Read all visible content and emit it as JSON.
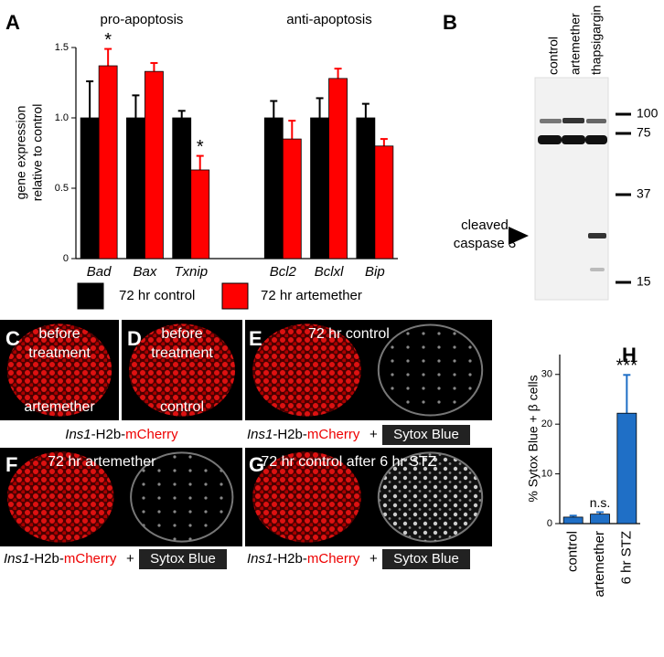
{
  "panels": {
    "labels": [
      "A",
      "B",
      "C",
      "D",
      "E",
      "F",
      "G",
      "H"
    ]
  },
  "chart_data": [
    {
      "type": "bar",
      "groups": [
        "pro-apoptosis",
        "anti-apoptosis"
      ],
      "ylabel": [
        "gene expression",
        "relative to control"
      ],
      "categories": [
        "Bad",
        "Bax",
        "Txnip",
        null,
        "Bcl2",
        "Bclxl",
        "Bip"
      ],
      "series": [
        {
          "name": "72 hr control",
          "color": "#000000",
          "values": [
            1,
            1,
            1,
            null,
            1,
            1,
            1
          ],
          "errors": [
            0.26,
            0.16,
            0.05,
            null,
            0.12,
            0.14,
            0.1
          ],
          "marks": [
            null,
            null,
            null,
            null,
            null,
            null,
            null
          ]
        },
        {
          "name": "72 hr artemether",
          "color": "#ff0000",
          "values": [
            1.37,
            1.33,
            0.63,
            null,
            0.85,
            1.28,
            0.8
          ],
          "errors": [
            0.12,
            0.06,
            0.1,
            null,
            0.13,
            0.07,
            0.05
          ],
          "marks": [
            "*",
            null,
            "*",
            null,
            null,
            null,
            null
          ]
        }
      ],
      "ylim": [
        0,
        1.5
      ],
      "yticks": [
        0,
        0.5,
        {
          "value": 1,
          "label": "1.0"
        },
        1.5
      ]
    },
    {
      "type": "bar",
      "ylabel": [
        "% Sytox Blue + β cells"
      ],
      "categories": [
        "control",
        "artemether",
        "6 hr STZ"
      ],
      "values": [
        1.3,
        1.9,
        22.2
      ],
      "errors": [
        0.3,
        0.4,
        7.7
      ],
      "marks": [
        null,
        "n.s.",
        "***"
      ],
      "color": "#1f6fc6",
      "ylim": [
        0,
        34
      ],
      "yticks": [
        0,
        10,
        20,
        30
      ]
    }
  ],
  "blot": {
    "lanes": [
      "control",
      "artemether",
      "thapsigargin"
    ],
    "markers": [
      100,
      75,
      37,
      15
    ],
    "arrow_label": [
      "cleaved",
      "caspase 3"
    ]
  },
  "images": [
    {
      "top": [
        "before",
        "treatment"
      ],
      "bottom": "artemether"
    },
    {
      "top": [
        "before",
        "treatment"
      ],
      "bottom": "control"
    },
    {
      "top": [
        "72 hr control"
      ]
    },
    {
      "top": [
        "72 hr artemether"
      ]
    },
    {
      "top": [
        "72 hr control after 6 hr STZ"
      ]
    }
  ],
  "caption": {
    "gene": "Ins1",
    "construct": "-H2b-",
    "reporter": "mCherry",
    "plus": "+",
    "stain": "Sytox Blue"
  }
}
